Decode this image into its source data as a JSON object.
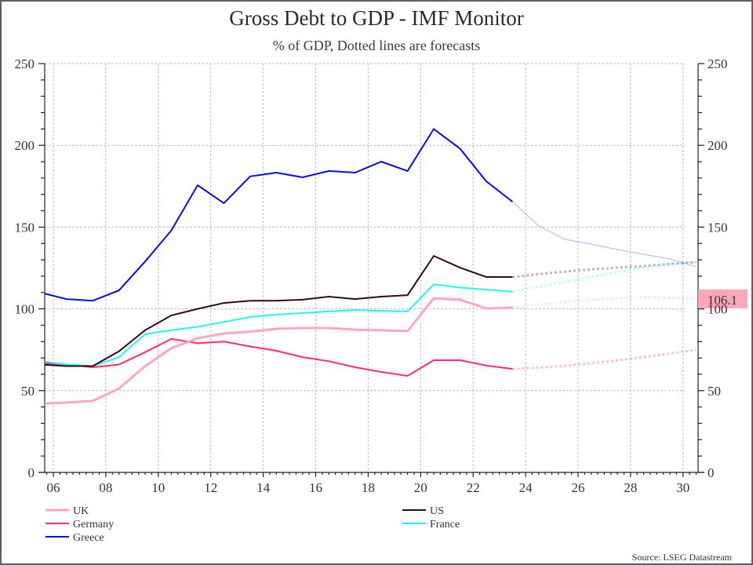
{
  "chart_data": {
    "type": "line",
    "title": "Gross Debt to GDP - IMF Monitor",
    "subtitle": "% of GDP, Dotted lines are forecasts",
    "source": "Source: LSEG Datastream",
    "xlabel": "",
    "ylabel": "",
    "x_ticks": [
      "06",
      "08",
      "10",
      "12",
      "14",
      "16",
      "18",
      "20",
      "22",
      "24",
      "26",
      "28",
      "30"
    ],
    "x_tick_years": [
      2006,
      2008,
      2010,
      2012,
      2014,
      2016,
      2018,
      2020,
      2022,
      2024,
      2026,
      2028,
      2030
    ],
    "xlim": [
      2005.7,
      2030.5
    ],
    "ylim": [
      0,
      250
    ],
    "y_ticks": [
      0,
      50,
      100,
      150,
      200,
      250
    ],
    "grid": true,
    "legend_position": "bottom",
    "last_value_label": {
      "series": "UK",
      "value": "106.1",
      "color": "#FFA6B8"
    },
    "x": [
      2005.5,
      2006.5,
      2007.5,
      2008.5,
      2009.5,
      2010.5,
      2011.5,
      2012.5,
      2013.5,
      2014.5,
      2015.5,
      2016.5,
      2017.5,
      2018.5,
      2019.5,
      2020.5,
      2021.5,
      2022.5,
      2023.5
    ],
    "forecast_x": [
      2023.5,
      2024.5,
      2025.5,
      2026.5,
      2027.5,
      2028.5,
      2029.5,
      2030.5
    ],
    "series": [
      {
        "name": "UK",
        "color": "#FFA6B8",
        "width": 3,
        "values": [
          42,
          42.7,
          43.7,
          51.3,
          65,
          76,
          82,
          85,
          86,
          87.8,
          88.3,
          88.3,
          87.3,
          86.9,
          86.4,
          106.5,
          105.6,
          100.3,
          100.8
        ],
        "forecast": [
          100.8,
          102.5,
          104.3,
          105.5,
          106.5,
          107,
          106.7,
          106.1
        ]
      },
      {
        "name": "US",
        "color": "#2E0A24",
        "width": 2,
        "values": [
          66,
          65,
          65,
          74,
          87,
          96,
          100,
          103.6,
          105,
          105,
          105.6,
          107.5,
          106,
          107.5,
          108.4,
          132.4,
          125.2,
          119.5,
          119.5
        ],
        "forecast": [
          119.5,
          121.3,
          122.8,
          124.2,
          125.2,
          126.2,
          127.5,
          128.6
        ]
      },
      {
        "name": "Germany",
        "color": "#FF2E5B",
        "width": 2,
        "values": [
          67,
          66,
          64.3,
          66,
          73.5,
          81.6,
          79,
          80,
          77,
          74.4,
          70.5,
          68,
          64.3,
          61.4,
          59,
          68.6,
          68.6,
          65.3,
          63.3
        ],
        "forecast": [
          63.3,
          64,
          65.2,
          66.7,
          68.5,
          70.5,
          72.7,
          75
        ]
      },
      {
        "name": "France",
        "color": "#1EF5F5",
        "width": 2,
        "values": [
          68,
          66,
          65,
          70.5,
          84.5,
          87,
          89,
          92,
          95,
          96.5,
          97.4,
          98.4,
          99.3,
          98.8,
          98.4,
          115,
          113,
          111.8,
          110.4
        ],
        "forecast": [
          110.4,
          113.5,
          116.5,
          119.5,
          122.5,
          125.2,
          127.3,
          128.6
        ]
      },
      {
        "name": "Greece",
        "color": "#0A0AE6",
        "width": 2,
        "values": [
          110,
          106,
          105,
          111.3,
          129,
          148,
          175.6,
          164.6,
          181,
          183.3,
          180.4,
          184.3,
          183.3,
          190,
          184.3,
          210,
          198,
          178,
          165.5
        ],
        "forecast": [
          165.5,
          150.7,
          142.5,
          139.6,
          136.3,
          133.4,
          130.5,
          125.7
        ]
      }
    ],
    "legend": [
      {
        "name": "UK",
        "color": "#FFA6B8",
        "column": 0
      },
      {
        "name": "Germany",
        "color": "#FF2E5B",
        "column": 0
      },
      {
        "name": "Greece",
        "color": "#0A0AE6",
        "column": 0
      },
      {
        "name": "US",
        "color": "#2E0A24",
        "column": 1
      },
      {
        "name": "France",
        "color": "#1EF5F5",
        "column": 1
      }
    ]
  }
}
